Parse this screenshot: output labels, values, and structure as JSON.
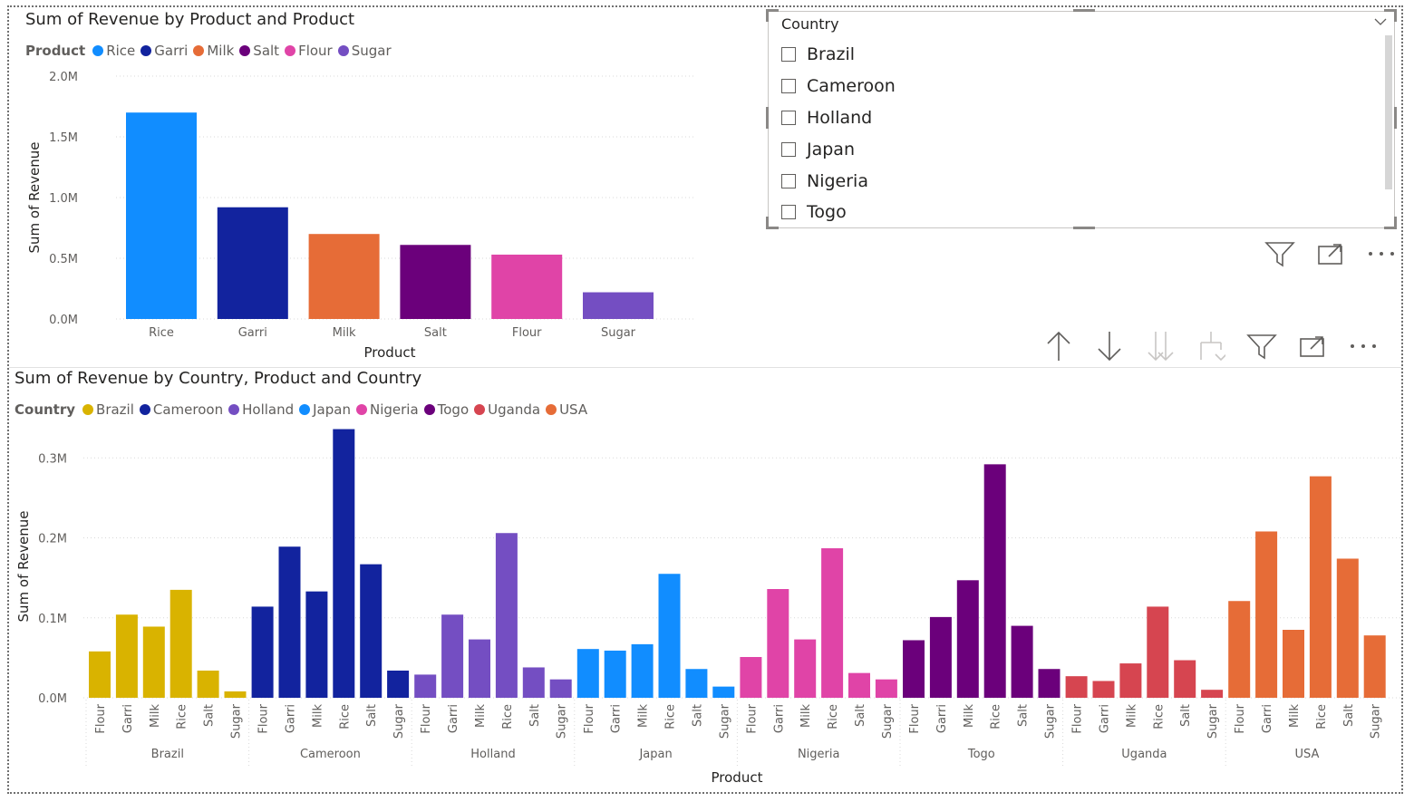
{
  "chart1": {
    "title": "Sum of Revenue by Product and Product",
    "legend_title": "Product",
    "chart_data": {
      "type": "bar",
      "title": "Sum of Revenue by Product and Product",
      "xlabel": "Product",
      "ylabel": "Sum of Revenue",
      "categories": [
        "Rice",
        "Garri",
        "Milk",
        "Salt",
        "Flour",
        "Sugar"
      ],
      "values": [
        1700000,
        920000,
        700000,
        610000,
        530000,
        220000
      ],
      "colors": [
        "#118DFF",
        "#12239E",
        "#E66C37",
        "#6B007B",
        "#E044A7",
        "#744EC2"
      ],
      "ylim": [
        0,
        2000000
      ],
      "yticks": [
        0,
        500000,
        1000000,
        1500000,
        2000000
      ],
      "ytick_labels": [
        "0.0M",
        "0.5M",
        "1.0M",
        "1.5M",
        "2.0M"
      ],
      "legend": [
        "Rice",
        "Garri",
        "Milk",
        "Salt",
        "Flour",
        "Sugar"
      ],
      "legend_position": "top-left",
      "grid": true
    }
  },
  "chart2": {
    "title": "Sum of Revenue by Country, Product and Country",
    "legend_title": "Country",
    "chart_data": {
      "type": "bar",
      "title": "Sum of Revenue by Country, Product and Country",
      "xlabel": "Product",
      "ylabel": "Sum of Revenue",
      "products": [
        "Flour",
        "Garri",
        "Milk",
        "Rice",
        "Salt",
        "Sugar"
      ],
      "ylim": [
        0,
        0.34
      ],
      "yticks": [
        0,
        0.1,
        0.2,
        0.3
      ],
      "ytick_labels": [
        "0.0M",
        "0.1M",
        "0.2M",
        "0.3M"
      ],
      "grid": true,
      "legend_position": "top-left",
      "groups": [
        {
          "country": "Brazil",
          "color": "#D9B300",
          "values": [
            0.058,
            0.104,
            0.089,
            0.135,
            0.034,
            0.008
          ]
        },
        {
          "country": "Cameroon",
          "color": "#12239E",
          "values": [
            0.114,
            0.189,
            0.133,
            0.336,
            0.167,
            0.034
          ]
        },
        {
          "country": "Holland",
          "color": "#744EC2",
          "values": [
            0.029,
            0.104,
            0.073,
            0.206,
            0.038,
            0.023
          ]
        },
        {
          "country": "Japan",
          "color": "#118DFF",
          "values": [
            0.061,
            0.059,
            0.067,
            0.155,
            0.036,
            0.014
          ]
        },
        {
          "country": "Nigeria",
          "color": "#E044A7",
          "values": [
            0.051,
            0.136,
            0.073,
            0.187,
            0.031,
            0.023
          ]
        },
        {
          "country": "Togo",
          "color": "#6B007B",
          "values": [
            0.072,
            0.101,
            0.147,
            0.292,
            0.09,
            0.036
          ]
        },
        {
          "country": "Uganda",
          "color": "#D64550",
          "values": [
            0.027,
            0.021,
            0.043,
            0.114,
            0.047,
            0.01
          ]
        },
        {
          "country": "USA",
          "color": "#E66C37",
          "values": [
            0.121,
            0.208,
            0.085,
            0.277,
            0.174,
            0.078
          ]
        }
      ]
    }
  },
  "slicer": {
    "header": "Country",
    "items": [
      "Brazil",
      "Cameroon",
      "Holland",
      "Japan",
      "Nigeria",
      "Togo"
    ]
  },
  "icons": {
    "slicer_toolbar": [
      "filter-icon",
      "focus-mode-icon",
      "more-options-icon"
    ],
    "chart_toolbar": [
      "drill-up-icon",
      "drill-down-icon",
      "expand-all-icon",
      "expand-hierarchy-icon",
      "filter-icon",
      "focus-mode-icon",
      "more-options-icon"
    ]
  }
}
